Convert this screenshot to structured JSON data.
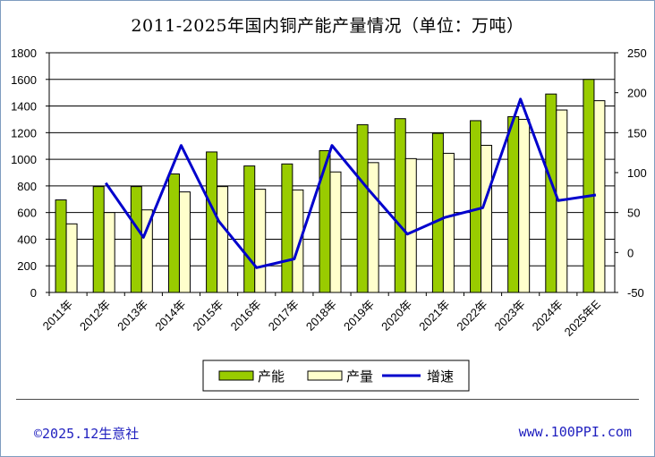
{
  "title": "2011-2025年国内铜产能产量情况（单位：万吨）",
  "footer": {
    "left": "©2025.12生意社",
    "right": "www.100PPI.com"
  },
  "colors": {
    "capacity": "#99cc00",
    "output": "#ffffcc",
    "growth": "#0000cc"
  },
  "chart_data": {
    "type": "bar",
    "categories": [
      "2011年",
      "2012年",
      "2013年",
      "2014年",
      "2015年",
      "2016年",
      "2017年",
      "2018年",
      "2019年",
      "2020年",
      "2021年",
      "2022年",
      "2023年",
      "2024年",
      "2025年E"
    ],
    "series": [
      {
        "name": "产能",
        "type": "bar",
        "axis": "left",
        "values": [
          695,
          795,
          795,
          890,
          1055,
          950,
          965,
          1065,
          1260,
          1305,
          1195,
          1290,
          1320,
          1490,
          1600
        ]
      },
      {
        "name": "产量",
        "type": "bar",
        "axis": "left",
        "values": [
          515,
          600,
          620,
          755,
          795,
          775,
          770,
          905,
          975,
          1005,
          1045,
          1105,
          1300,
          1370,
          1440
        ]
      },
      {
        "name": "增速",
        "type": "line",
        "axis": "right",
        "values": [
          null,
          87,
          19,
          134,
          39,
          -19,
          -8,
          134,
          77,
          23,
          44,
          56,
          192,
          65,
          72
        ]
      }
    ],
    "left_axis": {
      "min": 0,
      "max": 1800,
      "ticks": [
        "0",
        "200",
        "400",
        "600",
        "800",
        "1000",
        "1200",
        "1400",
        "1600",
        "1800"
      ]
    },
    "right_axis": {
      "min": -50,
      "max": 250,
      "ticks": [
        "-50",
        "0",
        "50",
        "100",
        "150",
        "200",
        "250"
      ]
    },
    "grid": "horizontal",
    "legend": {
      "position": "bottom-center",
      "items": [
        "产能",
        "产量",
        "增速"
      ]
    }
  }
}
